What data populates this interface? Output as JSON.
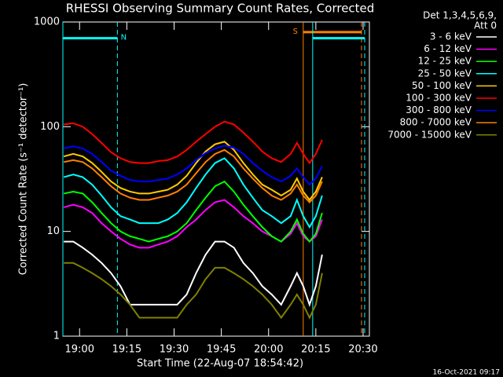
{
  "chart_data": {
    "type": "line",
    "title": "RHESSI Observing Summary Count Rates, Corrected",
    "xlabel": "Start Time (22-Aug-07 18:54:42)",
    "ylabel": "Corrected Count Rate (s⁻¹ detector⁻¹)",
    "legend_title": [
      "Det 1,3,4,5,6,9,",
      "Att 0"
    ],
    "footer": "16-Oct-2021 09:17",
    "log_y": true,
    "xlim": [
      "18:54:42",
      "20:32:00"
    ],
    "xticks": [
      "19:00",
      "19:15",
      "19:30",
      "19:45",
      "20:00",
      "20:15",
      "20:30"
    ],
    "ylim": [
      1,
      1000
    ],
    "yticks": [
      1,
      10,
      100,
      1000
    ],
    "legend": "right",
    "x": [
      "18:55",
      "18:58",
      "19:01",
      "19:04",
      "19:07",
      "19:10",
      "19:13",
      "19:16",
      "19:19",
      "19:22",
      "19:25",
      "19:28",
      "19:31",
      "19:34",
      "19:37",
      "19:40",
      "19:43",
      "19:46",
      "19:49",
      "19:52",
      "19:55",
      "19:58",
      "20:01",
      "20:04",
      "20:07",
      "20:09",
      "20:11",
      "20:13",
      "20:15",
      "20:17"
    ],
    "series": [
      {
        "name": "3 - 6 keV",
        "color": "#ffffff",
        "values": [
          8,
          8,
          7,
          6,
          5,
          4,
          3,
          2,
          2,
          2,
          2,
          2,
          2,
          2.5,
          4,
          6,
          8,
          8,
          7,
          5,
          4,
          3,
          2.5,
          2,
          3,
          4,
          3,
          2,
          3,
          6
        ]
      },
      {
        "name": "6 - 12 keV",
        "color": "#ff00ff",
        "values": [
          17,
          18,
          17,
          15,
          12,
          10,
          8.5,
          7.5,
          7,
          7,
          7.5,
          8,
          9,
          11,
          13,
          16,
          19,
          20,
          17,
          14,
          12,
          10,
          9,
          8,
          9.5,
          12,
          9,
          8,
          9,
          13
        ]
      },
      {
        "name": "12 - 25 keV",
        "color": "#00ff00",
        "values": [
          23,
          24,
          23,
          19,
          15,
          12,
          10,
          9,
          8.5,
          8,
          8.5,
          9,
          10,
          12,
          16,
          21,
          27,
          30,
          24,
          18,
          14,
          11,
          9,
          8,
          10,
          13,
          9.5,
          8,
          9.5,
          15
        ]
      },
      {
        "name": "25 - 50 keV",
        "color": "#00ffff",
        "values": [
          33,
          35,
          33,
          28,
          22,
          17,
          14,
          13,
          12,
          12,
          12,
          13,
          15,
          19,
          26,
          35,
          45,
          50,
          40,
          28,
          21,
          16,
          14,
          12,
          14,
          20,
          14,
          11,
          14,
          22
        ]
      },
      {
        "name": "50 - 100 keV",
        "color": "#ffcc00",
        "values": [
          52,
          55,
          52,
          45,
          37,
          30,
          26,
          24,
          23,
          23,
          24,
          25,
          28,
          34,
          45,
          58,
          68,
          72,
          60,
          45,
          35,
          28,
          25,
          22,
          25,
          32,
          24,
          20,
          24,
          33
        ]
      },
      {
        "name": "100 - 300 keV",
        "color": "#ff0000",
        "values": [
          105,
          108,
          100,
          85,
          70,
          57,
          50,
          46,
          45,
          45,
          47,
          48,
          52,
          60,
          72,
          85,
          100,
          112,
          105,
          88,
          72,
          58,
          50,
          46,
          55,
          70,
          55,
          45,
          55,
          75
        ]
      },
      {
        "name": "300 - 800 keV",
        "color": "#0000ff",
        "values": [
          62,
          65,
          62,
          55,
          46,
          38,
          34,
          31,
          30,
          30,
          31,
          32,
          35,
          40,
          48,
          56,
          62,
          66,
          63,
          55,
          45,
          38,
          33,
          30,
          34,
          40,
          33,
          28,
          32,
          42
        ]
      },
      {
        "name": "800 - 7000 keV",
        "color": "#ff8000",
        "values": [
          46,
          48,
          46,
          40,
          33,
          27,
          23,
          21,
          20,
          20,
          21,
          22,
          24,
          28,
          36,
          46,
          55,
          60,
          52,
          40,
          32,
          26,
          22,
          20,
          23,
          28,
          22,
          19,
          22,
          30
        ]
      },
      {
        "name": "7000 - 15000 keV",
        "color": "#808000",
        "values": [
          5,
          5,
          4.5,
          4,
          3.5,
          3,
          2.5,
          2,
          1.5,
          1.5,
          1.5,
          1.5,
          1.5,
          2,
          2.5,
          3.5,
          4.5,
          4.5,
          4,
          3.5,
          3,
          2.5,
          2,
          1.5,
          2,
          2.5,
          2,
          1.5,
          2,
          4
        ]
      }
    ],
    "intervals": [
      {
        "label": "N",
        "color": "#00ffff",
        "start": "18:54:42",
        "end": "19:12",
        "level": 700
      },
      {
        "label": "S",
        "color": "#ff8000",
        "start": "20:11",
        "end": "20:29:30",
        "level": 800
      },
      {
        "color": "#00ffff",
        "start": "20:14",
        "end": "20:30:30",
        "level": 700
      }
    ]
  }
}
